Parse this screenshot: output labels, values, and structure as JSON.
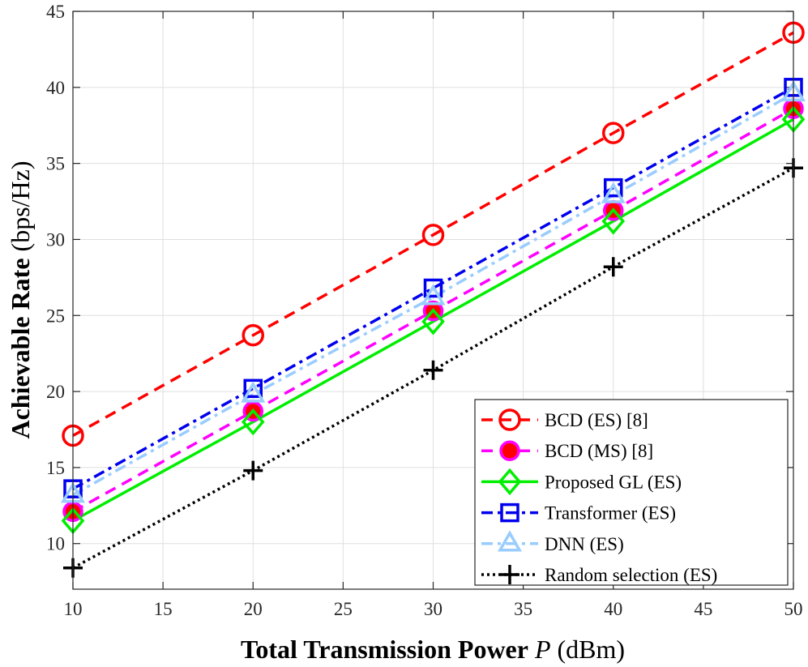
{
  "chart_data": {
    "type": "line",
    "xlabel": {
      "bold": "Total Transmission Power",
      "symbol": "P",
      "unit": "(dBm)"
    },
    "ylabel": {
      "bold": "Achievable Rate",
      "unit": "(bps/Hz)"
    },
    "xlim": [
      10,
      50
    ],
    "ylim": [
      7,
      45
    ],
    "xticks": [
      "10",
      "15",
      "20",
      "25",
      "30",
      "35",
      "40",
      "45",
      "50"
    ],
    "yticks": [
      "10",
      "15",
      "20",
      "25",
      "30",
      "35",
      "40",
      "45"
    ],
    "xtick_values": [
      10,
      15,
      20,
      25,
      30,
      35,
      40,
      45,
      50
    ],
    "ytick_values": [
      10,
      15,
      20,
      25,
      30,
      35,
      40,
      45
    ],
    "grid": true,
    "legend_position": "bottom-right",
    "x": [
      10,
      20,
      30,
      40,
      50
    ],
    "series": [
      {
        "name": "BCD (ES) [8]",
        "values": [
          17.1,
          23.7,
          30.3,
          37.0,
          43.6
        ],
        "color": "#ff0000",
        "dash": "dashed",
        "marker": "circle-open"
      },
      {
        "name": "BCD (MS) [8]",
        "values": [
          12.1,
          18.7,
          25.3,
          31.9,
          38.6
        ],
        "color": "#ff00ff",
        "marker_fill": "#ff0000",
        "dash": "dashed",
        "marker": "circle-filled"
      },
      {
        "name": "Proposed GL (ES)",
        "values": [
          11.5,
          18.0,
          24.6,
          31.2,
          37.9
        ],
        "color": "#00ee00",
        "dash": "solid",
        "marker": "diamond"
      },
      {
        "name": "Transformer (ES)",
        "values": [
          13.6,
          20.2,
          26.8,
          33.4,
          40.0
        ],
        "color": "#0000ee",
        "dash": "dashdot",
        "marker": "square"
      },
      {
        "name": "DNN (ES)",
        "values": [
          13.2,
          19.8,
          26.2,
          32.9,
          39.6
        ],
        "color": "#99ccff",
        "dash": "dashdot",
        "marker": "triangle"
      },
      {
        "name": "Random selection (ES)",
        "values": [
          8.4,
          14.8,
          21.4,
          28.2,
          34.7
        ],
        "color": "#000000",
        "dash": "dotted",
        "marker": "plus"
      }
    ]
  }
}
